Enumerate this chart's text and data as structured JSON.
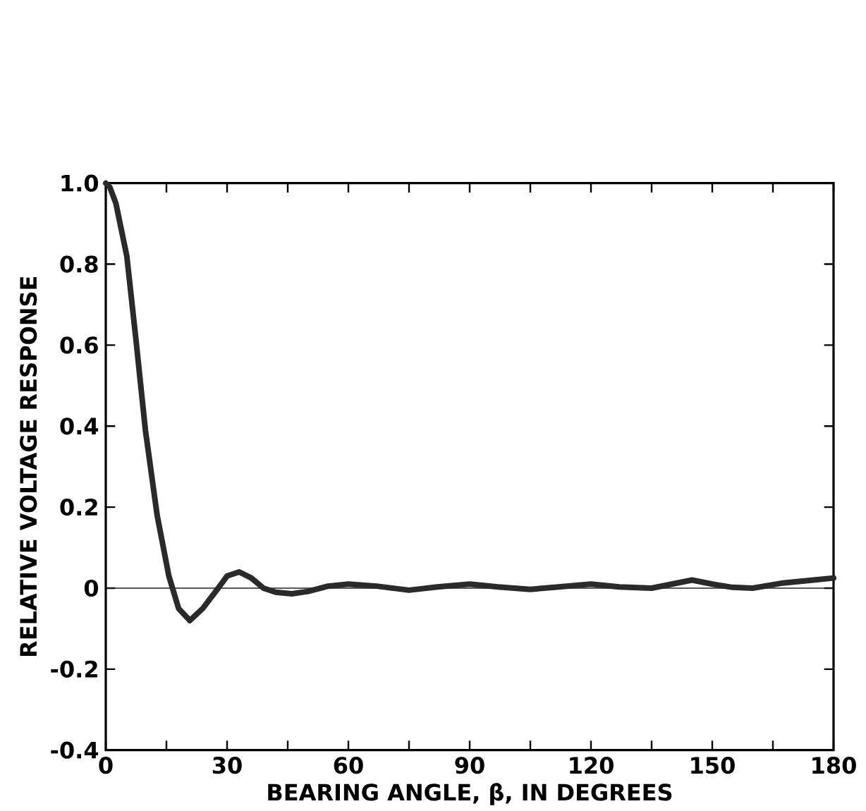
{
  "chart_data": {
    "type": "line",
    "xlabel": "BEARING ANGLE, β, IN DEGREES",
    "ylabel": "RELATIVE VOLTAGE RESPONSE",
    "xlim": [
      0,
      180
    ],
    "ylim": [
      -0.4,
      1.0
    ],
    "xticks": [
      0,
      {
        "value": 15,
        "label": null
      },
      30,
      {
        "value": 45,
        "label": null
      },
      60,
      {
        "value": 75,
        "label": null
      },
      90,
      {
        "value": 105,
        "label": null
      },
      120,
      {
        "value": 135,
        "label": null
      },
      150,
      {
        "value": 165,
        "label": null
      },
      180
    ],
    "yticks": [
      {
        "value": -0.4,
        "label": "-0.4"
      },
      {
        "value": -0.2,
        "label": "-0.2"
      },
      0,
      {
        "value": 0.2,
        "label": "0.2"
      },
      {
        "value": 0.4,
        "label": "0.4"
      },
      {
        "value": 0.6,
        "label": "0.6"
      },
      {
        "value": 0.8,
        "label": "0.8"
      },
      {
        "value": 1.0,
        "label": "1.0"
      }
    ],
    "ref_lines": [
      {
        "axis": "y",
        "value": 0,
        "color": "#222222"
      }
    ],
    "series": [
      {
        "color": "#2a2a2a",
        "line_style": "solid",
        "x": [
          0,
          1,
          2.5,
          5.2,
          7.5,
          9.8,
          12.7,
          15.6,
          18,
          20.8,
          24,
          27.8,
          30,
          33,
          36,
          39,
          42,
          46,
          50,
          55,
          60,
          67,
          75,
          82,
          90,
          97,
          105,
          112,
          120,
          127,
          135,
          140,
          145,
          150,
          155,
          160,
          167,
          175,
          180
        ],
        "values": [
          1.0,
          0.99,
          0.95,
          0.82,
          0.61,
          0.39,
          0.18,
          0.03,
          -0.05,
          -0.08,
          -0.05,
          0,
          0.03,
          0.04,
          0.025,
          0,
          -0.01,
          -0.014,
          -0.008,
          0.005,
          0.01,
          0.005,
          -0.005,
          0.003,
          0.01,
          0.003,
          -0.003,
          0.003,
          0.01,
          0.003,
          0,
          0.01,
          0.02,
          0.01,
          0.002,
          0,
          0.012,
          0.02,
          0.025
        ]
      }
    ]
  }
}
